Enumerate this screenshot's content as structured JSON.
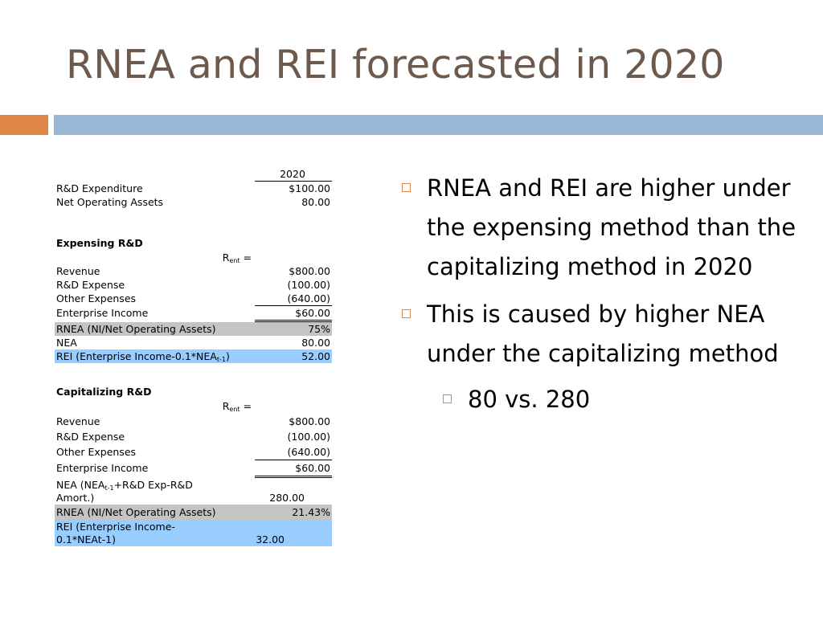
{
  "title": "RNEA and REI forecasted in 2020",
  "colors": {
    "title": "#6d5a4c",
    "accent_orange": "#e0874a",
    "accent_blue": "#98b8d6",
    "gray_row": "#c4c4c4",
    "blue_row": "#99ccff"
  },
  "table": {
    "year_header": "2020",
    "rd_expenditure": {
      "label": "R&D Expenditure",
      "value": "$100.00"
    },
    "net_operating_assets": {
      "label": "Net Operating Assets",
      "value": "80.00"
    },
    "expensing": {
      "heading": "Expensing R&D",
      "rent_prefix": "R",
      "rent_sub": "ent",
      "rent_suffix": " =",
      "revenue": {
        "label": "Revenue",
        "value": "$800.00"
      },
      "rd_expense": {
        "label": "R&D Expense",
        "value": "(100.00)"
      },
      "other_expenses": {
        "label": "Other Expenses",
        "value": "(640.00)"
      },
      "enterprise_income": {
        "label": "Enterprise Income",
        "value": "$60.00"
      },
      "rnea": {
        "label": "RNEA (NI/Net Operating Assets)",
        "value": "75%"
      },
      "nea": {
        "label": "NEA",
        "value": "80.00"
      },
      "rei": {
        "label_prefix": "REI (Enterprise Income-0.1*NEA",
        "label_sub": "t-1",
        "label_suffix": ")",
        "value": "52.00"
      }
    },
    "capitalizing": {
      "heading": "Capitalizing R&D",
      "rent_prefix": "R",
      "rent_sub": "ent",
      "rent_suffix": " =",
      "revenue": {
        "label": "Revenue",
        "value": "$800.00"
      },
      "rd_expense": {
        "label": "R&D Expense",
        "value": "(100.00)"
      },
      "other_expenses": {
        "label": "Other Expenses",
        "value": "(640.00)"
      },
      "enterprise_income": {
        "label": "Enterprise Income",
        "value": "$60.00"
      },
      "nea": {
        "label_prefix": "NEA (NEA",
        "label_sub": "t-1",
        "label_suffix": "+R&D Exp-R&D Amort.)",
        "value": "280.00"
      },
      "rnea": {
        "label": "RNEA (NI/Net Operating Assets)",
        "value": "21.43%"
      },
      "rei": {
        "label": "REI (Enterprise Income-0.1*NEAt-1)",
        "value": "32.00"
      }
    }
  },
  "bullets": [
    "RNEA and REI are higher under the expensing method than the capitalizing method in 2020",
    "This is caused by higher NEA under the capitalizing method"
  ],
  "sub_bullets": [
    "80 vs. 280"
  ]
}
